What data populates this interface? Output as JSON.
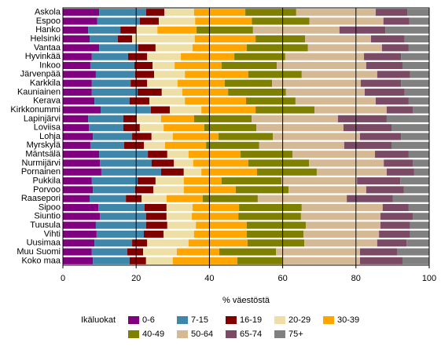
{
  "chart_data": {
    "type": "stacked_barh",
    "x_label": "% väestöstä",
    "legend_title": "Ikäluokat",
    "categories": [
      "Askola",
      "Espoo",
      "Hanko",
      "Helsinki",
      "Vantaa",
      "Hyvinkää",
      "Inkoo",
      "Järvenpää",
      "Karkkila",
      "Kauniainen",
      "Kerava",
      "Kirkkonummi",
      "Lapinjärvi",
      "Loviisa",
      "Lohja",
      "Myrskylä",
      "Mäntsälä",
      "Nurmijärvi",
      "Pornainen",
      "Pukkila",
      "Porvoo",
      "Raasepori",
      "Sipoo",
      "Siuntio",
      "Tuusula",
      "Vihti",
      "Uusimaa",
      "Muu Suomi",
      "Koko maa"
    ],
    "series": [
      {
        "name": "0-6",
        "color": "#800080",
        "values": [
          9.9,
          9.4,
          6.9,
          7.3,
          9.9,
          7.9,
          7.5,
          9,
          7.9,
          7.9,
          8.6,
          10.3,
          6.9,
          7.1,
          8.2,
          7.5,
          9.9,
          10.1,
          10.5,
          7.9,
          8.2,
          7.3,
          9.7,
          10.1,
          9,
          9.2,
          8.6,
          7.9,
          8.2
        ]
      },
      {
        "name": "7-15",
        "color": "#3f86ab",
        "values": [
          12.8,
          11.6,
          8.8,
          7.7,
          10.7,
          9.9,
          12,
          10.7,
          10.6,
          12.5,
          9.6,
          13.7,
          9.6,
          9.4,
          10.7,
          9.2,
          13.3,
          14.1,
          16.3,
          12.5,
          11.5,
          9.9,
          12.6,
          12.6,
          13.7,
          12.9,
          10.3,
          9.7,
          10
        ]
      },
      {
        "name": "16-19",
        "color": "#800000",
        "values": [
          5,
          5.2,
          4.3,
          3.9,
          4.7,
          5.2,
          5,
          5.2,
          4.5,
          6.6,
          5.4,
          5.2,
          3.7,
          4.5,
          5.3,
          5.4,
          5.3,
          6.1,
          6.2,
          4.9,
          5,
          4.3,
          6,
          5.6,
          5.8,
          5.4,
          4.1,
          4.3,
          4.5
        ]
      },
      {
        "name": "20-29",
        "color": "#eedfa6",
        "values": [
          8.1,
          9.9,
          5.8,
          17.1,
          10.1,
          9.2,
          6,
          8.4,
          8.3,
          5.6,
          9.7,
          8.6,
          6.6,
          6.5,
          5.8,
          5.8,
          5.8,
          5.3,
          4.8,
          7.7,
          8.3,
          6.8,
          7.1,
          6.9,
          7.8,
          8.3,
          11.3,
          9.2,
          7.3
        ]
      },
      {
        "name": "30-39",
        "color": "#ffa500",
        "values": [
          14,
          15.5,
          10.7,
          16.6,
          14.8,
          14.6,
          12.8,
          17.3,
          12.9,
          12.5,
          16.7,
          14.8,
          9,
          11.1,
          12.5,
          11.2,
          14.2,
          15,
          15.2,
          10.3,
          14.2,
          9.9,
          12.7,
          12.7,
          13.9,
          14.4,
          16.1,
          11.6,
          17.6
        ]
      },
      {
        "name": "40-49",
        "color": "#808000",
        "values": [
          13.9,
          15.7,
          15.4,
          13.5,
          16.7,
          13.9,
          15.1,
          14.6,
          12.9,
          15.8,
          13.5,
          16.1,
          15.7,
          14.2,
          14.8,
          14.5,
          14.2,
          16.6,
          16.3,
          16.4,
          14.4,
          15,
          17.1,
          17.1,
          16.1,
          15.5,
          15.5,
          15.5,
          12.3
        ]
      },
      {
        "name": "50-64",
        "color": "#d5b995",
        "values": [
          21.7,
          20.2,
          23.6,
          18,
          20.2,
          21.5,
          24.4,
          20.6,
          24.2,
          21.5,
          21.9,
          19.7,
          23.6,
          23.8,
          23.8,
          23.2,
          22.5,
          20.4,
          19.1,
          20.6,
          21.2,
          24.3,
          22.1,
          21.7,
          20.4,
          20.6,
          19.9,
          22.9,
          21.2
        ]
      },
      {
        "name": "65-74",
        "color": "#7b4a65",
        "values": [
          8.6,
          7.1,
          12.5,
          9.2,
          7.3,
          10.1,
          9.9,
          9,
          11,
          10.9,
          9,
          7.1,
          13.3,
          13.1,
          11.2,
          12.9,
          9.2,
          7.9,
          7.5,
          11.8,
          10.3,
          12.6,
          7.1,
          8.8,
          8.1,
          8.5,
          8,
          10.1,
          11.6
        ]
      },
      {
        "name": "75+",
        "color": "#808080",
        "values": [
          6,
          5.4,
          12,
          6.7,
          5.6,
          7.7,
          7.3,
          5.2,
          7.7,
          6.7,
          5.6,
          4.5,
          11.6,
          10.3,
          7.7,
          10.3,
          5.6,
          4.5,
          4.1,
          7.9,
          6.9,
          9.9,
          5.6,
          4.5,
          5.2,
          5.2,
          6.2,
          8.8,
          7.3
        ]
      }
    ],
    "xlim": [
      0,
      100
    ],
    "xticks": [
      0,
      20,
      40,
      60,
      80,
      100
    ],
    "grid": true
  }
}
